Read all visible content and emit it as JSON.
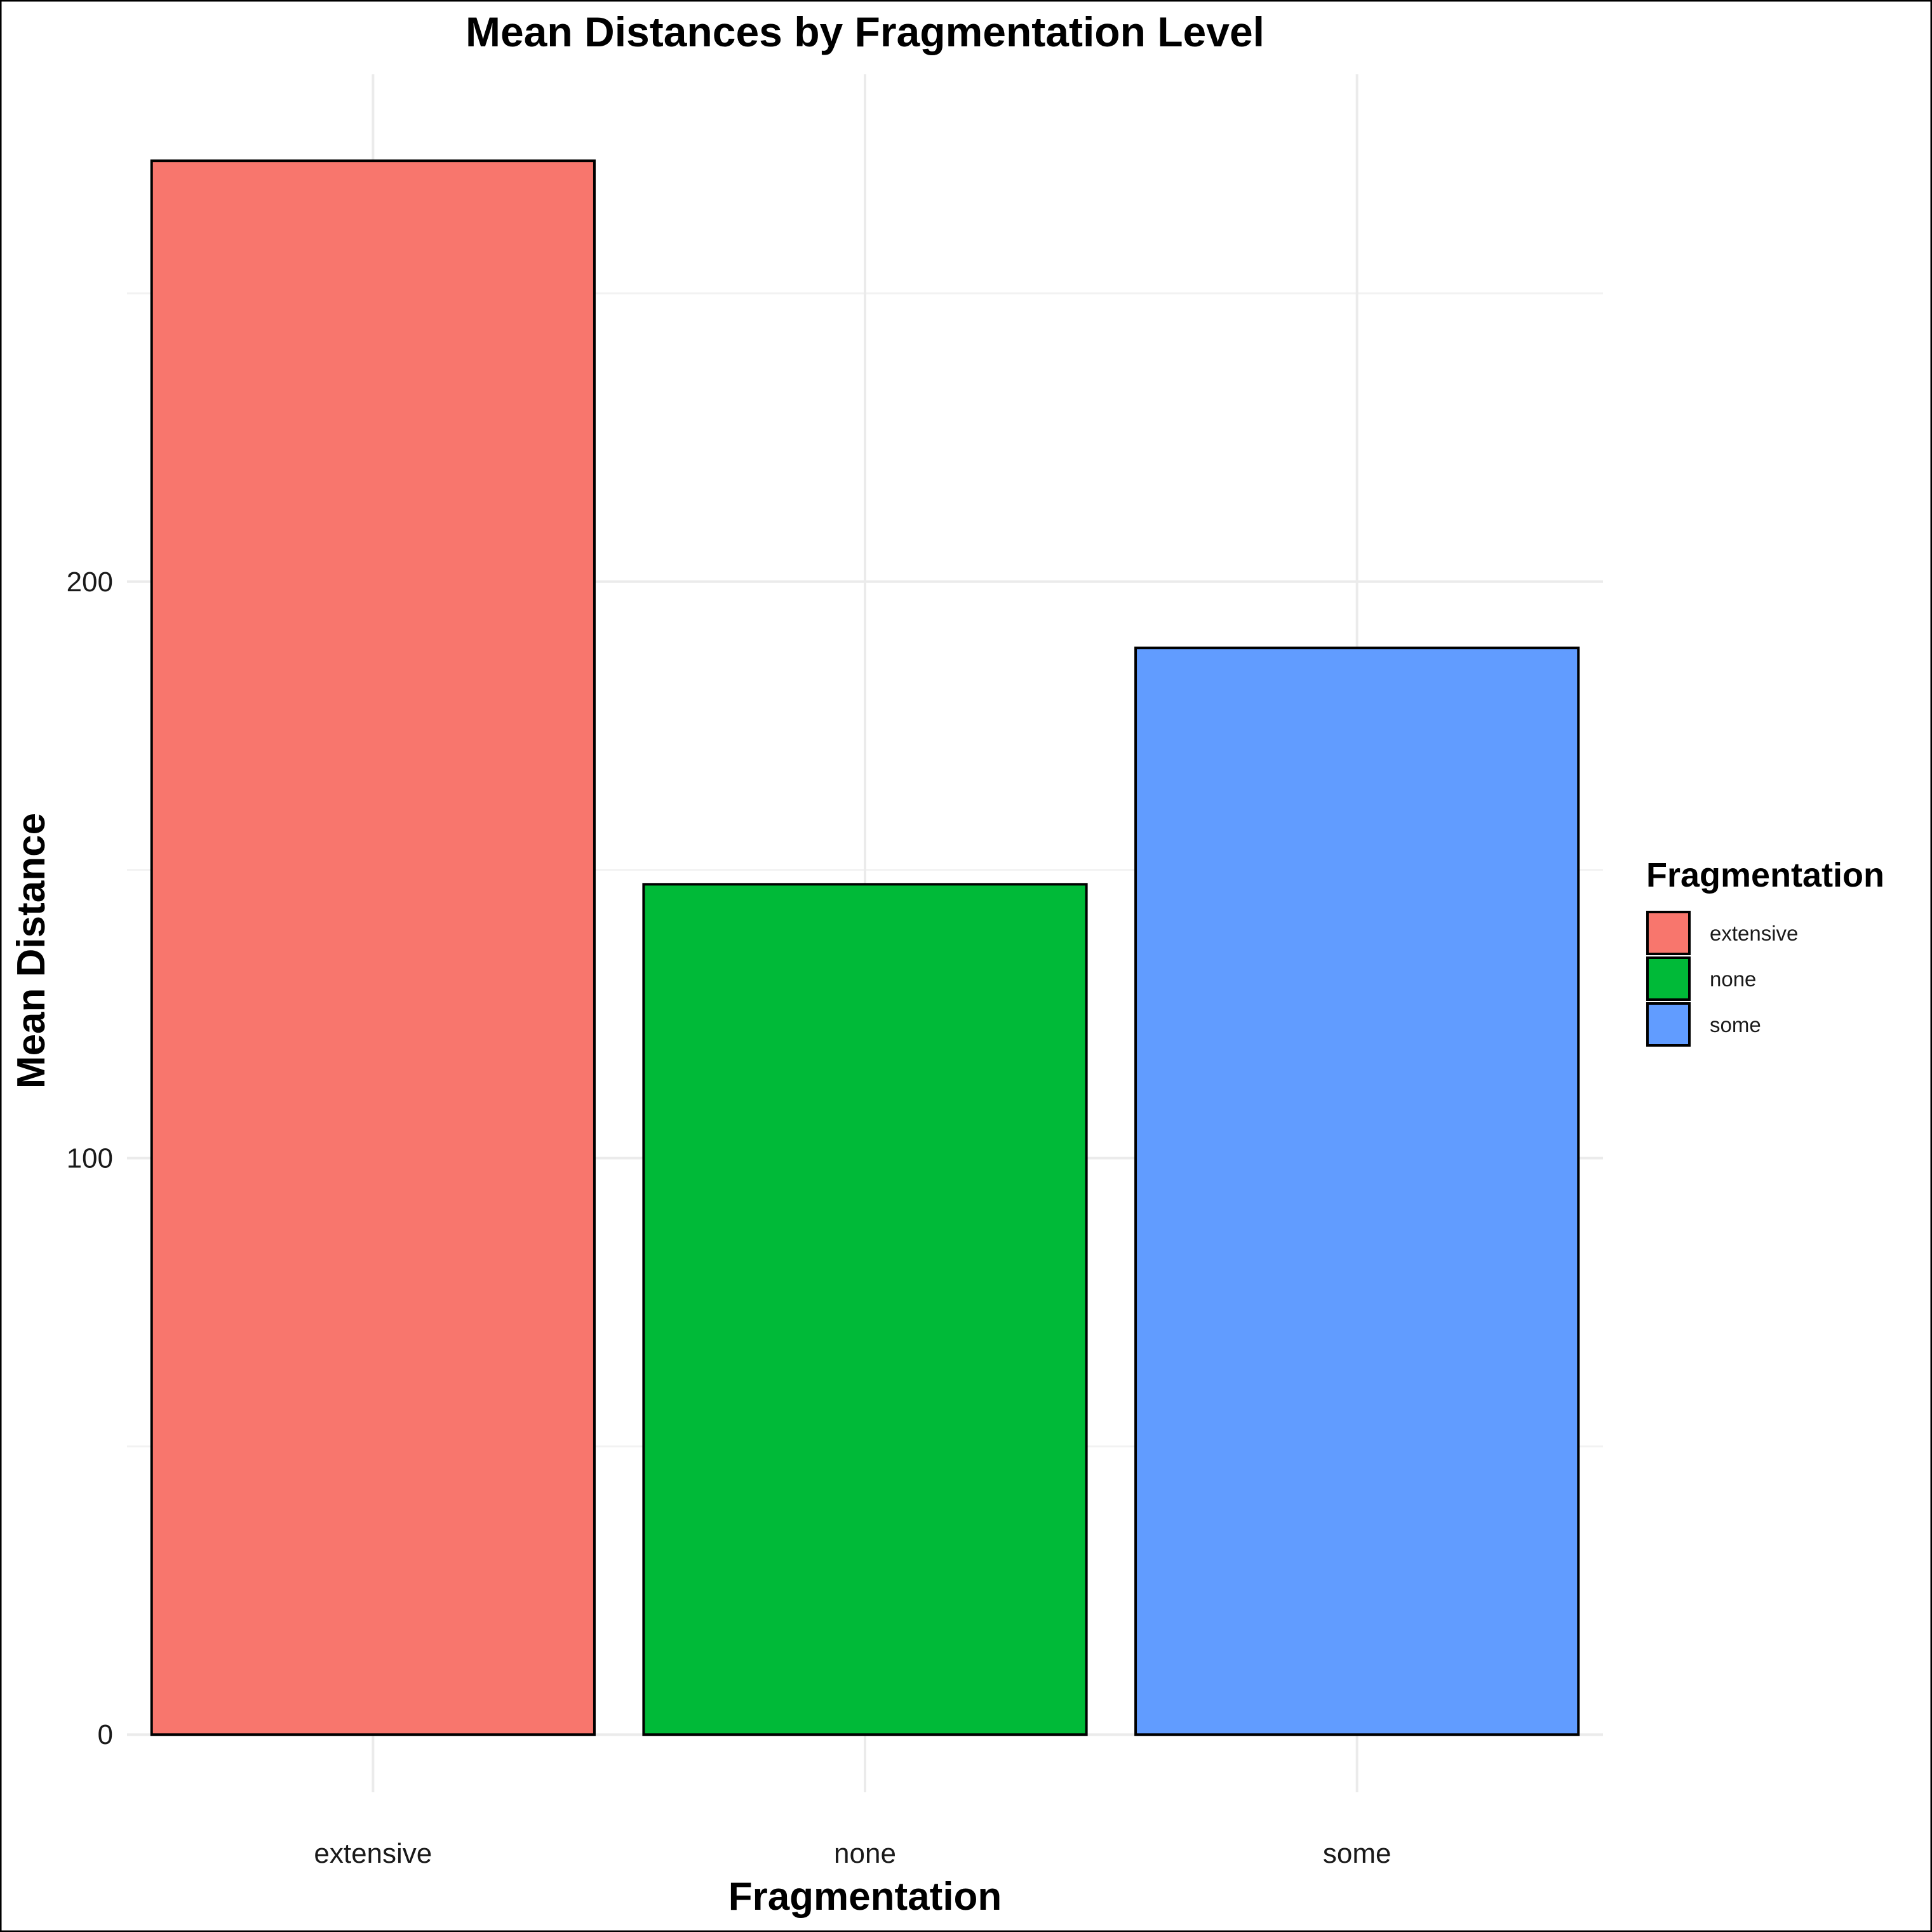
{
  "chart_data": {
    "type": "bar",
    "title": "Mean Distances by Fragmentation Level",
    "xlabel": "Fragmentation",
    "ylabel": "Mean Distance",
    "categories": [
      "extensive",
      "none",
      "some"
    ],
    "values": [
      273,
      147.5,
      188.5
    ],
    "colors": [
      "#F8766D",
      "#00BA38",
      "#619CFF"
    ],
    "bar_border_color": "#000000",
    "ylim": [
      -10,
      288
    ],
    "yticks": [
      0,
      100,
      200
    ],
    "ytick_labels": [
      "0",
      "100",
      "200"
    ],
    "grid": true,
    "legend": {
      "title": "Fragmentation",
      "placement": "right",
      "entries": [
        "extensive",
        "none",
        "some"
      ]
    }
  }
}
